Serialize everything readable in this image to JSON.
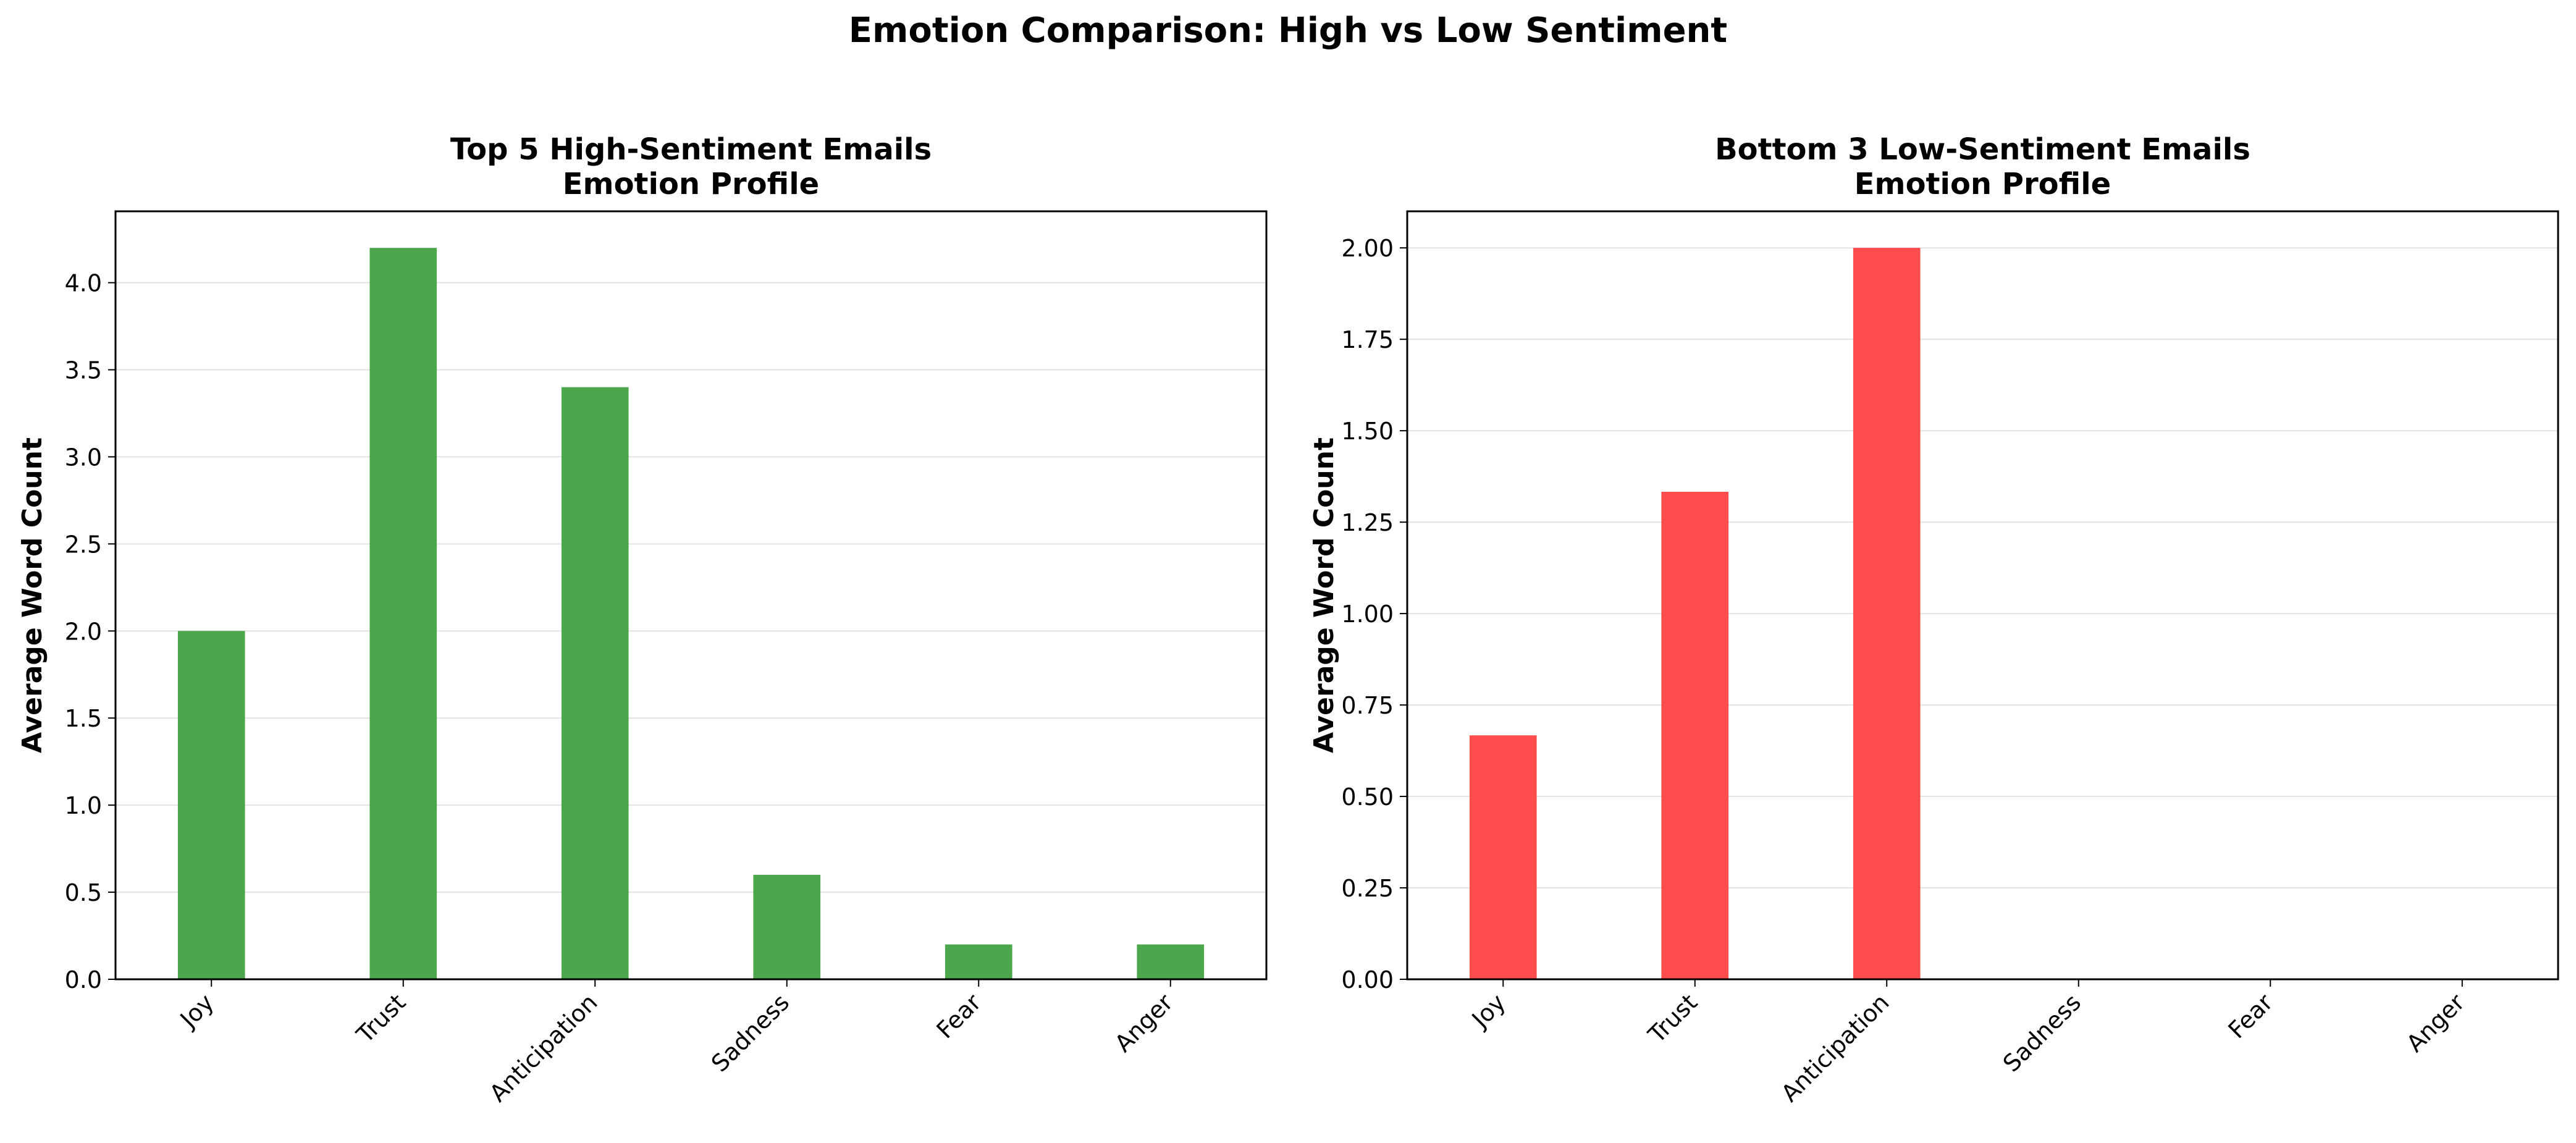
{
  "figure": {
    "suptitle": "Emotion Comparison: High vs Low Sentiment"
  },
  "chart_data": [
    {
      "type": "bar",
      "title": "Top 5 High-Sentiment Emails\nEmotion Profile",
      "title_lines": [
        "Top 5 High-Sentiment Emails",
        "Emotion Profile"
      ],
      "xlabel": "",
      "ylabel": "Average Word Count",
      "categories": [
        "Joy",
        "Trust",
        "Anticipation",
        "Sadness",
        "Fear",
        "Anger"
      ],
      "values": [
        2.0,
        4.2,
        3.4,
        0.6,
        0.2,
        0.2
      ],
      "ylim": [
        0,
        4.41
      ],
      "yticks": [
        0.0,
        0.5,
        1.0,
        1.5,
        2.0,
        2.5,
        3.0,
        3.5,
        4.0
      ],
      "ytick_labels": [
        "0.0",
        "0.5",
        "1.0",
        "1.5",
        "2.0",
        "2.5",
        "3.0",
        "3.5",
        "4.0"
      ],
      "bar_color": "#4ca64c",
      "grid": true
    },
    {
      "type": "bar",
      "title": "Bottom 3 Low-Sentiment Emails\nEmotion Profile",
      "title_lines": [
        "Bottom 3 Low-Sentiment Emails",
        "Emotion Profile"
      ],
      "xlabel": "",
      "ylabel": "Average Word Count",
      "categories": [
        "Joy",
        "Trust",
        "Anticipation",
        "Sadness",
        "Fear",
        "Anger"
      ],
      "values": [
        0.667,
        1.333,
        2.0,
        0.0,
        0.0,
        0.0
      ],
      "ylim": [
        0,
        2.1
      ],
      "yticks": [
        0.0,
        0.25,
        0.5,
        0.75,
        1.0,
        1.25,
        1.5,
        1.75,
        2.0
      ],
      "ytick_labels": [
        "0.00",
        "0.25",
        "0.50",
        "0.75",
        "1.00",
        "1.25",
        "1.50",
        "1.75",
        "2.00"
      ],
      "bar_color": "#ff4c4c",
      "grid": true
    }
  ]
}
